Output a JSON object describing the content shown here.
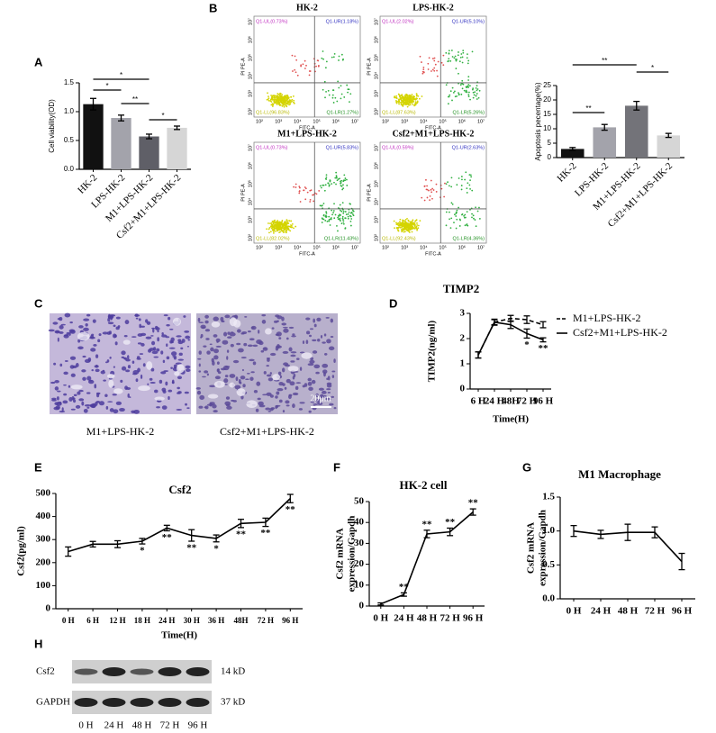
{
  "chart_data": [
    {
      "type": "bar",
      "panel": "A",
      "y_label": "Cell viability(OD)",
      "categories": [
        "HK-2",
        "LPS-HK-2",
        "M1+LPS-HK-2",
        "Csf2+M1+LPS-HK-2"
      ],
      "series": [
        {
          "colors": [
            "#111111",
            "#a3a3ab",
            "#5f5f67",
            "#d6d6d6"
          ],
          "values": [
            1.13,
            0.89,
            0.57,
            0.72
          ],
          "errors": [
            0.1,
            0.05,
            0.04,
            0.03
          ]
        }
      ],
      "ylim": [
        0,
        1.5
      ],
      "yticks": [
        {
          "value": 0,
          "label": "0.0"
        },
        {
          "value": 0.5,
          "label": "0.5"
        },
        {
          "value": 1,
          "label": "1.0"
        },
        {
          "value": 1.5,
          "label": "1.5"
        }
      ],
      "significance": [
        {
          "pair": [
            "HK-2",
            "M1+LPS-HK-2"
          ],
          "label": "*"
        },
        {
          "pair": [
            "HK-2",
            "LPS-HK-2"
          ],
          "label": "*"
        },
        {
          "pair": [
            "LPS-HK-2",
            "M1+LPS-HK-2"
          ],
          "label": "**"
        },
        {
          "pair": [
            "M1+LPS-HK-2",
            "Csf2+M1+LPS-HK-2"
          ],
          "label": "*"
        }
      ]
    },
    {
      "type": "bar",
      "y_label": "Apoptosis pecentage(%)",
      "categories": [
        "HK-2",
        "LPS-HK-2",
        "M1+LPS-HK-2",
        "Csf2+M1+LPS-HK-2"
      ],
      "series": [
        {
          "colors": [
            "#111111",
            "#a3a3ab",
            "#737379",
            "#d6d6d6"
          ],
          "values": [
            3,
            10.5,
            18,
            7.7
          ],
          "errors": [
            0.5,
            1,
            1.5,
            0.7
          ]
        }
      ],
      "ylim": [
        0,
        25
      ],
      "yticks": [
        0,
        5,
        10,
        15,
        20,
        25
      ],
      "significance": [
        {
          "pair": [
            "HK-2",
            "M1+LPS-HK-2"
          ],
          "label": "**"
        },
        {
          "pair": [
            "HK-2",
            "LPS-HK-2"
          ],
          "label": "**"
        },
        {
          "pair": [
            "M1+LPS-HK-2",
            "Csf2+M1+LPS-HK-2"
          ],
          "label": "*"
        }
      ]
    },
    {
      "type": "line",
      "panel": "D",
      "title": "TIMP2",
      "y_label": "TIMP2(ng/ml)",
      "x_label": "Time(H)",
      "categories": [
        "6 H",
        "24 H",
        "48H",
        "72 H",
        "96 H"
      ],
      "series": [
        {
          "name": "M1+LPS-HK-2",
          "color": "#000000",
          "dash": "dashed",
          "values": [
            1.35,
            2.65,
            2.8,
            2.75,
            2.55
          ],
          "errors": [
            0.12,
            0.1,
            0.12,
            0.15,
            0.12
          ]
        },
        {
          "name": "Csf2+M1+LPS-HK-2",
          "color": "#000000",
          "dash": "solid",
          "values": [
            1.35,
            2.65,
            2.55,
            2.2,
            1.95
          ],
          "errors": [
            0.12,
            0.12,
            0.15,
            0.18,
            0.08
          ],
          "annotations": [
            null,
            null,
            null,
            "*",
            "**"
          ]
        }
      ],
      "ylim": [
        0,
        3
      ],
      "yticks": [
        0,
        1,
        2,
        3
      ],
      "legend": "right"
    },
    {
      "type": "line",
      "panel": "E",
      "title": "Csf2",
      "y_label": "Csf2(pg/ml)",
      "x_label": "Time(H)",
      "categories": [
        "0 H",
        "6 H",
        "12 H",
        "18 H",
        "24 H",
        "30 H",
        "36 H",
        "48H",
        "72 H",
        "96 H"
      ],
      "series": [
        {
          "color": "#000000",
          "dash": "solid",
          "values": [
            248,
            280,
            280,
            293,
            350,
            318,
            305,
            370,
            375,
            478
          ],
          "errors": [
            20,
            12,
            15,
            12,
            12,
            25,
            15,
            18,
            18,
            18
          ],
          "annotations": [
            null,
            null,
            null,
            "*",
            "**",
            "**",
            "*",
            "**",
            "**",
            "**"
          ]
        }
      ],
      "ylim": [
        0,
        500
      ],
      "yticks": [
        0,
        100,
        200,
        300,
        400,
        500
      ]
    },
    {
      "type": "line",
      "panel": "F",
      "title": "HK-2 cell",
      "y_label": [
        "Csf2 mRNA",
        "expression/Gapdh"
      ],
      "categories": [
        "0 H",
        "24 H",
        "48 H",
        "72 H",
        "96 H"
      ],
      "series": [
        {
          "color": "#000000",
          "dash": "solid",
          "values": [
            1,
            5.5,
            34.5,
            35.5,
            45
          ],
          "errors": [
            0.5,
            0.8,
            1.8,
            1.8,
            1.5
          ],
          "annotations": [
            null,
            "**",
            "**",
            "**",
            "**"
          ]
        }
      ],
      "ylim": [
        0,
        50
      ],
      "yticks": [
        0,
        10,
        20,
        30,
        40,
        50
      ]
    },
    {
      "type": "line",
      "panel": "G",
      "title": "M1 Macrophage",
      "y_label": [
        "Csf2 mRNA",
        "expression/Gapdh"
      ],
      "categories": [
        "0 H",
        "24 H",
        "48 H",
        "72 H",
        "96 H"
      ],
      "series": [
        {
          "color": "#000000",
          "dash": "solid",
          "values": [
            1.0,
            0.95,
            0.98,
            0.98,
            0.55
          ],
          "errors": [
            0.08,
            0.06,
            0.12,
            0.08,
            0.12
          ]
        }
      ],
      "ylim": [
        0,
        1.5
      ],
      "yticks": [
        {
          "value": 0,
          "label": "0.0"
        },
        {
          "value": 0.5,
          "label": "0.5"
        },
        {
          "value": 1,
          "label": "1.0"
        },
        {
          "value": 1.5,
          "label": "1.5"
        }
      ]
    }
  ],
  "flow_cytometry": {
    "panel": "B",
    "x_axis_label": "FITC-A",
    "y_axis_label": "PI PE-A",
    "axis_ticks": [
      "10²",
      "10³",
      "10⁴",
      "10⁵",
      "10⁶",
      "10⁷"
    ],
    "plots": [
      {
        "title": "HK-2",
        "UL": "Q1-UL(0.73%)",
        "UR": "Q1-UR(1.18%)",
        "LL": "Q1-LL(96.83%)",
        "LR": "Q1-LR(1.27%)"
      },
      {
        "title": "LPS-HK-2",
        "UL": "Q1-UL(2.02%)",
        "UR": "Q1-UR(5.10%)",
        "LL": "Q1-LL(87.63%)",
        "LR": "Q1-LR(5.26%)"
      },
      {
        "title": "M1+LPS-HK-2",
        "UL": "Q1-UL(0.73%)",
        "UR": "Q1-UR(5.83%)",
        "LL": "Q1-LL(82.02%)",
        "LR": "Q1-LR(11.43%)"
      },
      {
        "title": "Csf2+M1+LPS-HK-2",
        "UL": "Q1-UL(0.59%)",
        "UR": "Q1-UR(2.63%)",
        "LL": "Q1-LL(92.43%)",
        "LR": "Q1-LR(4.36%)"
      }
    ]
  },
  "microscopy": {
    "panel": "C",
    "scale_bar": "20μm",
    "images": [
      {
        "caption": "M1+LPS-HK-2"
      },
      {
        "caption": "Csf2+M1+LPS-HK-2"
      }
    ]
  },
  "western_blot": {
    "panel": "H",
    "lanes": [
      "0 H",
      "24 H",
      "48 H",
      "72 H",
      "96 H"
    ],
    "rows": [
      {
        "protein": "Csf2",
        "size": "14 kD"
      },
      {
        "protein": "GAPDH",
        "size": "37 kD"
      }
    ]
  }
}
